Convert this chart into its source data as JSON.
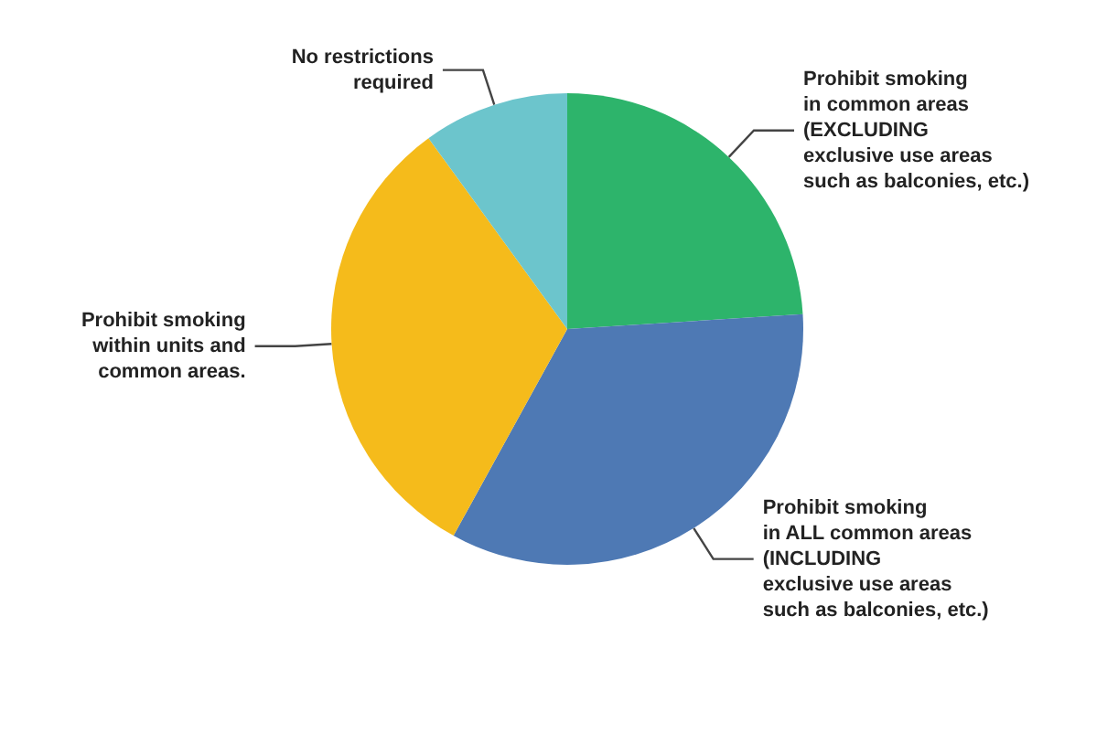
{
  "chart_data": {
    "type": "pie",
    "categories": [
      "Prohibit smoking\nin common areas\n(EXCLUDING\nexclusive use areas\nsuch as balconies, etc.)",
      "Prohibit smoking\nin ALL common areas\n(INCLUDING\nexclusive use areas\nsuch as balconies, etc.)",
      "Prohibit smoking\nwithin units and\ncommon areas.",
      "No restrictions\nrequired"
    ],
    "values": [
      24,
      34,
      32,
      10
    ],
    "colors": [
      "#2db46b",
      "#4e79b4",
      "#f5bb1b",
      "#6cc5cc"
    ],
    "legend": false
  }
}
